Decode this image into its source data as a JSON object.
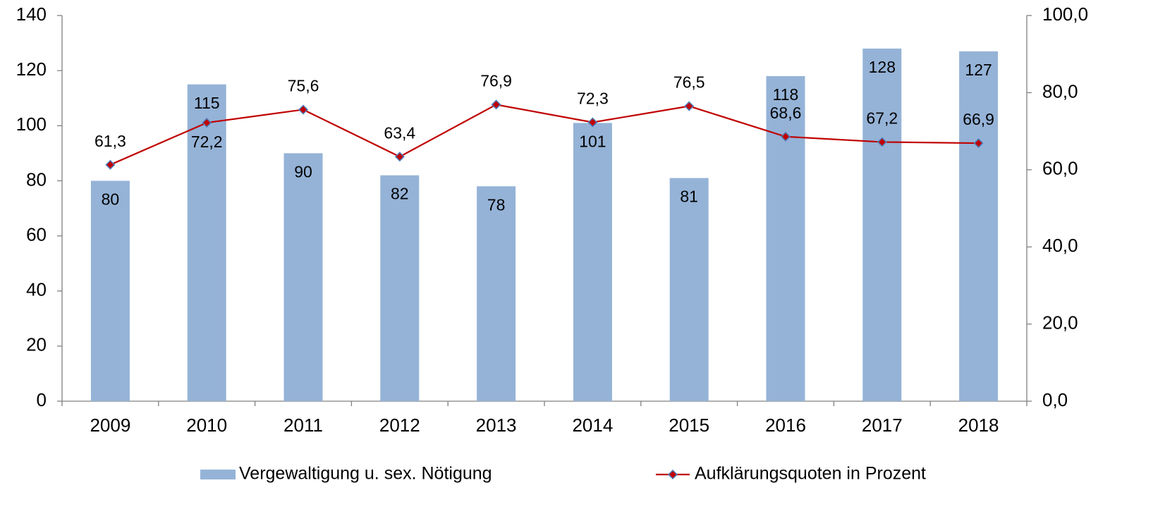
{
  "chart_data": {
    "type": "bar",
    "categories": [
      "2009",
      "2010",
      "2011",
      "2012",
      "2013",
      "2014",
      "2015",
      "2016",
      "2017",
      "2018"
    ],
    "series": [
      {
        "name": "Vergewaltigung u. sex. Nötigung",
        "type": "bar",
        "color": "#95b3d7",
        "values": [
          80,
          115,
          90,
          82,
          78,
          101,
          81,
          118,
          128,
          127
        ]
      },
      {
        "name": "Aufklärungsquoten in Prozent",
        "type": "line",
        "axis": "y2",
        "color": "#c00000",
        "marker_color": "#4f81bd",
        "values": [
          61.3,
          72.2,
          75.6,
          63.4,
          76.9,
          72.3,
          76.5,
          68.6,
          67.2,
          66.9
        ],
        "value_labels": [
          "61,3",
          "72,2",
          "75,6",
          "63,4",
          "76,9",
          "72,3",
          "76,5",
          "68,6",
          "67,2",
          "66,9"
        ]
      }
    ],
    "ylim": [
      0,
      140
    ],
    "yticks": [
      0,
      20,
      40,
      60,
      80,
      100,
      120,
      140
    ],
    "y2lim": [
      0,
      100
    ],
    "y2ticks": [
      {
        "value": 0,
        "label": "0,0"
      },
      {
        "value": 20,
        "label": "20,0"
      },
      {
        "value": 40,
        "label": "40,0"
      },
      {
        "value": 60,
        "label": "60,0"
      },
      {
        "value": 80,
        "label": "80,0"
      },
      {
        "value": 100,
        "label": "100,0"
      }
    ],
    "grid": false,
    "legend": "bottom"
  }
}
